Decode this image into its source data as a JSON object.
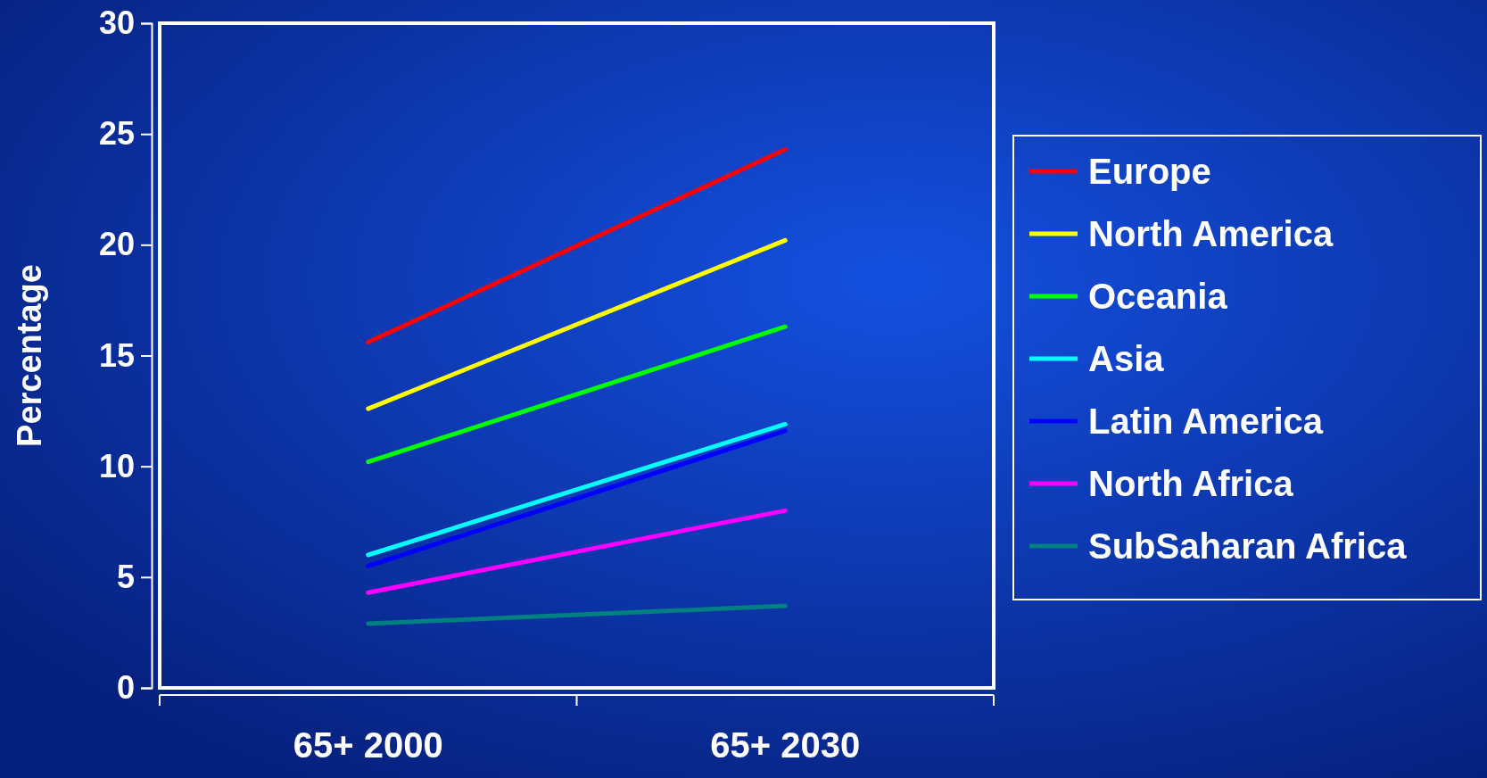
{
  "chart_data": {
    "type": "line",
    "ylabel": "Percentage",
    "categories": [
      "65+ 2000",
      "65+ 2030"
    ],
    "ylim": [
      0,
      30
    ],
    "yticks": [
      0,
      5,
      10,
      15,
      20,
      25,
      30
    ],
    "legend": "right",
    "marker": "none",
    "line_style": "solid",
    "series": [
      {
        "name": "Europe",
        "color": "#ff0000",
        "values": [
          15.6,
          24.3
        ]
      },
      {
        "name": "North America",
        "color": "#ffff00",
        "values": [
          12.6,
          20.2
        ]
      },
      {
        "name": "Oceania",
        "color": "#00ff00",
        "values": [
          10.2,
          16.3
        ]
      },
      {
        "name": "Asia",
        "color": "#00ffff",
        "values": [
          6.0,
          11.9
        ]
      },
      {
        "name": "Latin America",
        "color": "#0000ff",
        "values": [
          5.5,
          11.6
        ]
      },
      {
        "name": "North Africa",
        "color": "#ff00ff",
        "values": [
          4.3,
          8.0
        ]
      },
      {
        "name": "SubSaharan Africa",
        "color": "#008080",
        "values": [
          2.9,
          3.7
        ]
      }
    ]
  }
}
